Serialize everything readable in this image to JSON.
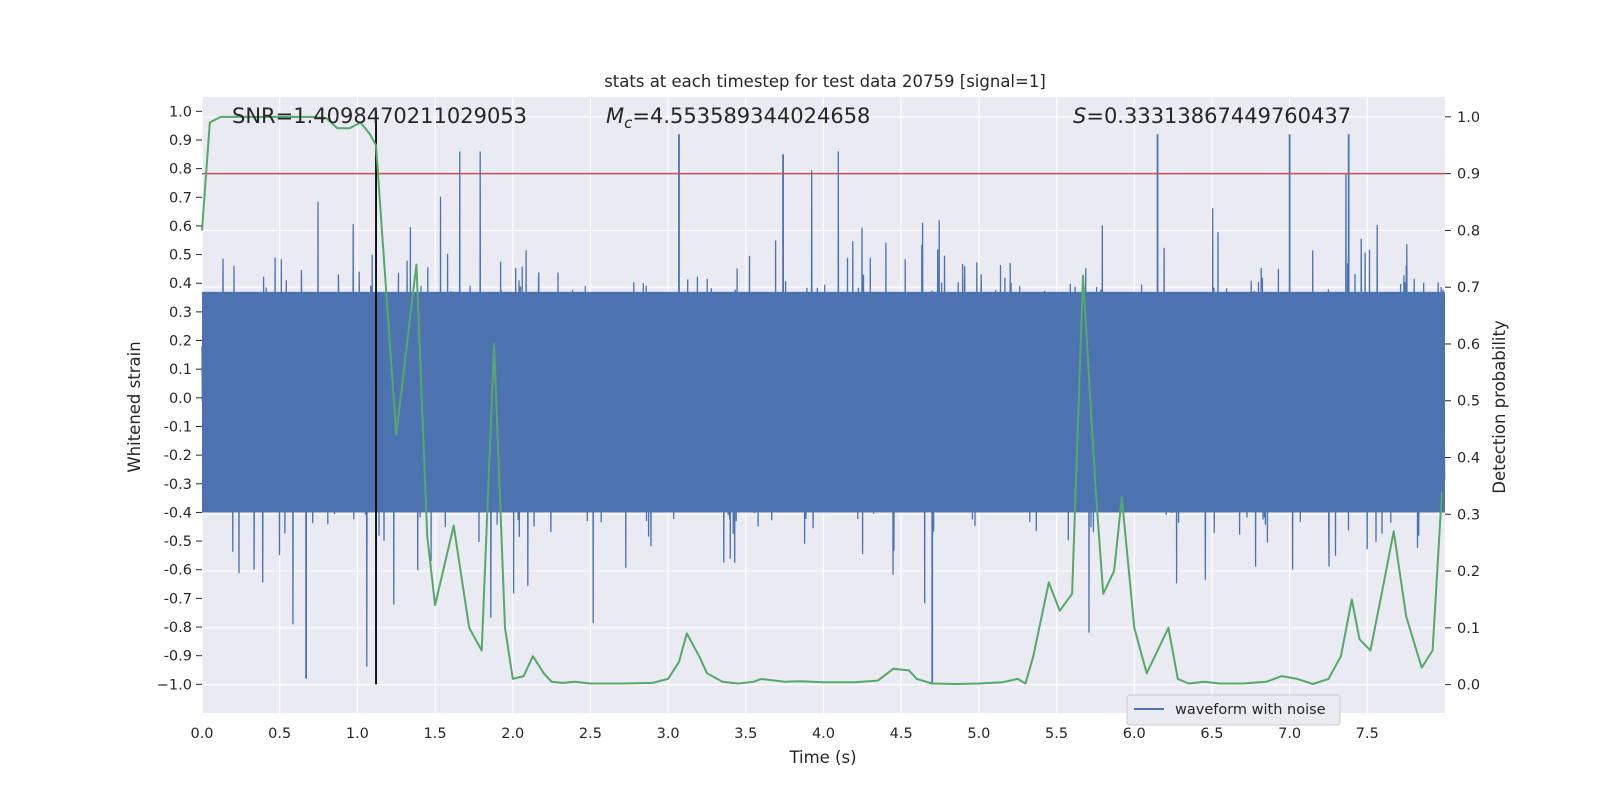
{
  "chart_data": {
    "type": "line",
    "title": "stats at each timestep for test data 20759 [signal=1]",
    "xlabel": "Time (s)",
    "ylabel": "Whitened strain",
    "y2label": "Detection probability",
    "xlim": [
      0.0,
      8.0
    ],
    "ylim": [
      -1.1,
      1.05
    ],
    "y2lim": [
      -0.05,
      1.035
    ],
    "xticks": [
      "0.0",
      "0.5",
      "1.0",
      "1.5",
      "2.0",
      "2.5",
      "3.0",
      "3.5",
      "4.0",
      "4.5",
      "5.0",
      "5.5",
      "6.0",
      "6.5",
      "7.0",
      "7.5"
    ],
    "yticks": [
      "1.0",
      "0.9",
      "0.8",
      "0.7",
      "0.6",
      "0.5",
      "0.4",
      "0.3",
      "0.2",
      "0.1",
      "0.0",
      "-0.1",
      "-0.2",
      "-0.3",
      "-0.4",
      "-0.5",
      "-0.6",
      "-0.7",
      "-0.8",
      "-0.9",
      "−1.0"
    ],
    "y2ticks": [
      "1.0",
      "0.9",
      "0.8",
      "0.7",
      "0.6",
      "0.5",
      "0.4",
      "0.3",
      "0.2",
      "0.1",
      "0.0"
    ],
    "annotations": {
      "snr": "SNR=1.4098470211029053",
      "mc_symbol": "M",
      "mc_sub": "c",
      "mc_value": "=4.553589344024658",
      "s_symbol": "S",
      "s_value": "=0.33313867449760437"
    },
    "threshold": 0.9,
    "event_time": 1.12,
    "series": [
      {
        "name": "waveform with noise",
        "axis": "left",
        "color": "#4c72b0",
        "description": "dense whitened noise, roughly between -0.6 and 0.6 with spikes up to about 0.92 and down to about -1.0",
        "band": [
          -0.4,
          0.37
        ],
        "peaks": [
          {
            "x": 0.67,
            "y": -0.98
          },
          {
            "x": 3.07,
            "y": 0.92
          },
          {
            "x": 3.74,
            "y": 0.85
          },
          {
            "x": 4.7,
            "y": -1.0
          },
          {
            "x": 6.15,
            "y": 0.92
          },
          {
            "x": 7.0,
            "y": 0.92
          },
          {
            "x": 7.38,
            "y": 0.92
          }
        ]
      },
      {
        "name": "detection probability",
        "axis": "right",
        "color": "#55a868",
        "x": [
          0.0,
          0.05,
          0.12,
          0.25,
          0.4,
          0.55,
          0.7,
          0.8,
          0.87,
          0.95,
          1.02,
          1.08,
          1.12,
          1.25,
          1.38,
          1.45,
          1.5,
          1.62,
          1.72,
          1.8,
          1.88,
          1.95,
          2.0,
          2.07,
          2.13,
          2.2,
          2.25,
          2.32,
          2.4,
          2.5,
          2.7,
          2.9,
          3.0,
          3.07,
          3.12,
          3.2,
          3.25,
          3.35,
          3.45,
          3.55,
          3.6,
          3.75,
          3.85,
          4.0,
          4.2,
          4.35,
          4.45,
          4.55,
          4.6,
          4.7,
          4.85,
          5.0,
          5.15,
          5.25,
          5.3,
          5.35,
          5.45,
          5.52,
          5.6,
          5.67,
          5.75,
          5.8,
          5.87,
          5.92,
          6.0,
          6.08,
          6.15,
          6.22,
          6.28,
          6.35,
          6.45,
          6.55,
          6.7,
          6.85,
          6.95,
          7.05,
          7.15,
          7.25,
          7.33,
          7.4,
          7.45,
          7.52,
          7.6,
          7.67,
          7.75,
          7.85,
          7.92,
          7.98
        ],
        "y": [
          0.8,
          0.99,
          1.0,
          1.0,
          1.0,
          1.0,
          1.0,
          0.998,
          0.98,
          0.98,
          0.99,
          0.97,
          0.95,
          0.44,
          0.74,
          0.26,
          0.14,
          0.28,
          0.1,
          0.06,
          0.6,
          0.1,
          0.01,
          0.015,
          0.05,
          0.02,
          0.005,
          0.003,
          0.005,
          0.002,
          0.002,
          0.003,
          0.01,
          0.04,
          0.09,
          0.05,
          0.02,
          0.005,
          0.002,
          0.005,
          0.01,
          0.005,
          0.006,
          0.004,
          0.004,
          0.007,
          0.028,
          0.025,
          0.01,
          0.002,
          0.001,
          0.002,
          0.004,
          0.01,
          0.002,
          0.05,
          0.18,
          0.13,
          0.16,
          0.72,
          0.35,
          0.16,
          0.2,
          0.33,
          0.1,
          0.02,
          0.06,
          0.1,
          0.01,
          0.002,
          0.005,
          0.002,
          0.002,
          0.005,
          0.015,
          0.01,
          0.001,
          0.01,
          0.05,
          0.15,
          0.08,
          0.06,
          0.17,
          0.27,
          0.12,
          0.03,
          0.06,
          0.34
        ]
      }
    ],
    "legend": {
      "label": "waveform with noise",
      "placement": "bottom-right"
    }
  }
}
